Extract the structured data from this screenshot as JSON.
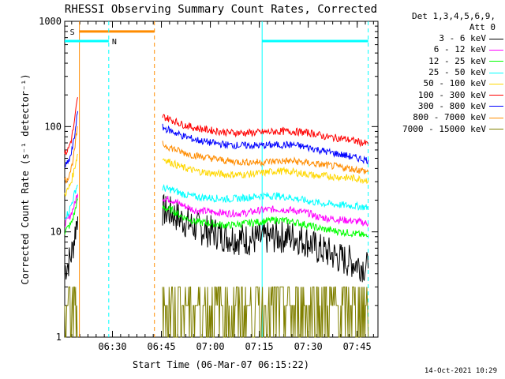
{
  "chart_data": {
    "type": "line",
    "title": "RHESSI Observing Summary Count Rates, Corrected",
    "xlabel": "Start Time (06-Mar-07 06:15:22)",
    "ylabel": "Corrected Count Rate (s⁻¹ detector⁻¹)",
    "y_scale": "log",
    "ylim": [
      1,
      1000
    ],
    "y_ticks": [
      1,
      10,
      100,
      1000
    ],
    "y_tick_labels": [
      "1",
      "10",
      "100",
      "1000"
    ],
    "xlim_minutes": [
      0,
      96
    ],
    "x_ticks_minutes": [
      14.633,
      29.633,
      44.633,
      59.633,
      74.633,
      89.633
    ],
    "x_tick_labels": [
      "06:30",
      "06:45",
      "07:00",
      "07:15",
      "07:30",
      "07:45"
    ],
    "legend_header": [
      "Det 1,3,4,5,6,9,",
      "Att 0"
    ],
    "legend_placement": "right",
    "grid": false,
    "series": [
      {
        "name": "3 - 6 keV",
        "color": "#000000",
        "pre": [
          [
            0,
            4.5
          ],
          [
            1,
            5
          ],
          [
            2,
            6
          ],
          [
            3,
            9
          ],
          [
            3.5,
            12
          ],
          [
            4,
            14
          ]
        ],
        "post": [
          [
            30,
            16
          ],
          [
            33,
            15
          ],
          [
            36,
            13
          ],
          [
            40,
            11
          ],
          [
            45,
            10
          ],
          [
            50,
            9
          ],
          [
            55,
            8.5
          ],
          [
            60,
            8.5
          ],
          [
            65,
            9
          ],
          [
            70,
            9
          ],
          [
            75,
            8
          ],
          [
            77,
            7
          ],
          [
            80,
            6.5
          ],
          [
            85,
            5.5
          ],
          [
            90,
            5
          ],
          [
            93,
            4.5
          ]
        ]
      },
      {
        "name": "6 - 12 keV",
        "color": "#ff00ff",
        "pre": [
          [
            0,
            12
          ],
          [
            1,
            13
          ],
          [
            2,
            15
          ],
          [
            3,
            18
          ],
          [
            3.5,
            21
          ],
          [
            4,
            23
          ]
        ],
        "post": [
          [
            30,
            21
          ],
          [
            33,
            20
          ],
          [
            36,
            18
          ],
          [
            40,
            16
          ],
          [
            45,
            15.5
          ],
          [
            50,
            15
          ],
          [
            55,
            15
          ],
          [
            60,
            16
          ],
          [
            65,
            16.5
          ],
          [
            70,
            16
          ],
          [
            75,
            15
          ],
          [
            77,
            14
          ],
          [
            80,
            13.5
          ],
          [
            85,
            13
          ],
          [
            90,
            12.5
          ],
          [
            93,
            12
          ]
        ]
      },
      {
        "name": "12 - 25 keV",
        "color": "#00ff00",
        "pre": [
          [
            0,
            10
          ],
          [
            1,
            11
          ],
          [
            2,
            12
          ],
          [
            3,
            15
          ],
          [
            3.5,
            18
          ],
          [
            4,
            20
          ]
        ],
        "post": [
          [
            30,
            17
          ],
          [
            33,
            16
          ],
          [
            36,
            14
          ],
          [
            40,
            12.5
          ],
          [
            45,
            12
          ],
          [
            50,
            11.5
          ],
          [
            55,
            12
          ],
          [
            60,
            12.5
          ],
          [
            65,
            13
          ],
          [
            70,
            12.5
          ],
          [
            75,
            11.5
          ],
          [
            77,
            11
          ],
          [
            80,
            10.5
          ],
          [
            85,
            10
          ],
          [
            90,
            9.5
          ],
          [
            93,
            9
          ]
        ]
      },
      {
        "name": "25 - 50 keV",
        "color": "#00ffff",
        "pre": [
          [
            0,
            14
          ],
          [
            1,
            15
          ],
          [
            2,
            18
          ],
          [
            3,
            23
          ],
          [
            3.5,
            26
          ],
          [
            4,
            28
          ]
        ],
        "post": [
          [
            30,
            26
          ],
          [
            33,
            25
          ],
          [
            36,
            23
          ],
          [
            40,
            21.5
          ],
          [
            45,
            21
          ],
          [
            50,
            20.5
          ],
          [
            55,
            21
          ],
          [
            60,
            22
          ],
          [
            65,
            22
          ],
          [
            70,
            21
          ],
          [
            75,
            19.5
          ],
          [
            77,
            19
          ],
          [
            80,
            18.5
          ],
          [
            85,
            18
          ],
          [
            90,
            17.5
          ],
          [
            93,
            17
          ]
        ]
      },
      {
        "name": "50 - 100 keV",
        "color": "#ffd700",
        "pre": [
          [
            0,
            23
          ],
          [
            1,
            25
          ],
          [
            2,
            30
          ],
          [
            3,
            40
          ],
          [
            3.5,
            48
          ],
          [
            4,
            55
          ]
        ],
        "post": [
          [
            30,
            50
          ],
          [
            33,
            45
          ],
          [
            36,
            41
          ],
          [
            40,
            38
          ],
          [
            45,
            36
          ],
          [
            50,
            35
          ],
          [
            55,
            35
          ],
          [
            60,
            36
          ],
          [
            65,
            38
          ],
          [
            70,
            37
          ],
          [
            75,
            35
          ],
          [
            77,
            34
          ],
          [
            80,
            34
          ],
          [
            85,
            33
          ],
          [
            90,
            32
          ],
          [
            93,
            31
          ]
        ]
      },
      {
        "name": "100 - 300 keV",
        "color": "#ff0000",
        "pre": [
          [
            0,
            55
          ],
          [
            1,
            60
          ],
          [
            2,
            75
          ],
          [
            3,
            110
          ],
          [
            3.5,
            150
          ],
          [
            4,
            190
          ]
        ],
        "post": [
          [
            30,
            125
          ],
          [
            33,
            115
          ],
          [
            36,
            105
          ],
          [
            40,
            97
          ],
          [
            45,
            92
          ],
          [
            50,
            88
          ],
          [
            55,
            87
          ],
          [
            60,
            88
          ],
          [
            65,
            90
          ],
          [
            70,
            90
          ],
          [
            75,
            87
          ],
          [
            77,
            85
          ],
          [
            80,
            80
          ],
          [
            85,
            77
          ],
          [
            90,
            72
          ],
          [
            93,
            68
          ]
        ]
      },
      {
        "name": "300 - 800 keV",
        "color": "#0000ff",
        "pre": [
          [
            0,
            42
          ],
          [
            1,
            45
          ],
          [
            2,
            55
          ],
          [
            3,
            80
          ],
          [
            3.5,
            110
          ],
          [
            4,
            140
          ]
        ],
        "post": [
          [
            30,
            98
          ],
          [
            33,
            90
          ],
          [
            36,
            82
          ],
          [
            40,
            75
          ],
          [
            45,
            70
          ],
          [
            50,
            67
          ],
          [
            55,
            66
          ],
          [
            60,
            66
          ],
          [
            65,
            67
          ],
          [
            70,
            67
          ],
          [
            75,
            63
          ],
          [
            77,
            61
          ],
          [
            80,
            58
          ],
          [
            85,
            54
          ],
          [
            90,
            50
          ],
          [
            93,
            48
          ]
        ]
      },
      {
        "name": "800 - 7000 keV",
        "color": "#ff8c00",
        "pre": [
          [
            0,
            30
          ],
          [
            1,
            33
          ],
          [
            2,
            40
          ],
          [
            3,
            58
          ],
          [
            3.5,
            80
          ],
          [
            4,
            100
          ]
        ],
        "post": [
          [
            30,
            68
          ],
          [
            33,
            62
          ],
          [
            36,
            57
          ],
          [
            40,
            53
          ],
          [
            45,
            50
          ],
          [
            50,
            47
          ],
          [
            55,
            46
          ],
          [
            60,
            46
          ],
          [
            65,
            47
          ],
          [
            70,
            47
          ],
          [
            75,
            45
          ],
          [
            77,
            44
          ],
          [
            80,
            43
          ],
          [
            85,
            41
          ],
          [
            90,
            39
          ],
          [
            93,
            37
          ]
        ]
      },
      {
        "name": "7000 - 15000 keV",
        "color": "#808000",
        "pre": [
          [
            0,
            1
          ],
          [
            1,
            1
          ],
          [
            2,
            2
          ],
          [
            3,
            3
          ],
          [
            3.5,
            1
          ],
          [
            4,
            1
          ]
        ],
        "post": [
          [
            30,
            3
          ],
          [
            33,
            2
          ],
          [
            36,
            1
          ],
          [
            40,
            2
          ],
          [
            45,
            1
          ],
          [
            50,
            2
          ],
          [
            55,
            1
          ],
          [
            60,
            2
          ],
          [
            65,
            3
          ],
          [
            70,
            2
          ],
          [
            75,
            1
          ],
          [
            77,
            3
          ],
          [
            80,
            2
          ],
          [
            85,
            2
          ],
          [
            90,
            2
          ],
          [
            93,
            1
          ]
        ]
      }
    ],
    "annotations": [
      {
        "text": "S",
        "color": "#ff8c00"
      },
      {
        "text": "N",
        "color": "#00ffff"
      }
    ],
    "intervals": {
      "saa": {
        "color": "#ff8c00",
        "start": 4.5,
        "end": 27.5,
        "y": 800
      },
      "night_1": {
        "color": "#00ffff",
        "start": 0,
        "end": 13.5,
        "y": 650
      },
      "night_2": {
        "color": "#00ffff",
        "start": 60.5,
        "end": 93,
        "y": 650
      }
    }
  },
  "timestamp": "14-Oct-2021 10:29"
}
